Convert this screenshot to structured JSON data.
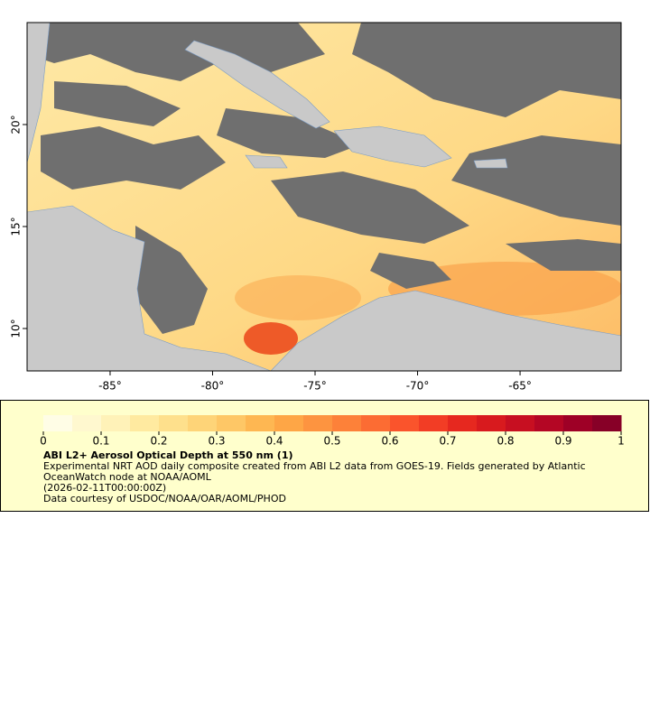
{
  "chart_data": {
    "type": "map",
    "xlim": [
      -89.05,
      -60.07
    ],
    "ylim": [
      7.92,
      25
    ],
    "xticks": [
      {
        "value": -85,
        "label": "-85°"
      },
      {
        "value": -80,
        "label": "-80°"
      },
      {
        "value": -75,
        "label": "-75°"
      },
      {
        "value": -70,
        "label": "-70°"
      },
      {
        "value": -65,
        "label": "-65°"
      }
    ],
    "yticks": [
      {
        "value": 10,
        "label": "10°"
      },
      {
        "value": 15,
        "label": "15°"
      },
      {
        "value": 20,
        "label": "20°"
      }
    ],
    "colorbar": {
      "title": "ABI L2+ Aerosol Optical Depth at 550 nm (1)",
      "lim": [
        0,
        1
      ],
      "ticks": [
        0,
        0.1,
        0.2,
        0.3,
        0.4,
        0.5,
        0.6,
        0.7,
        0.8,
        0.9,
        1
      ],
      "colors": [
        "#fffde6",
        "#fff8cf",
        "#fff2b8",
        "#ffeaa0",
        "#fee08c",
        "#fed478",
        "#fec766",
        "#feb752",
        "#fea646",
        "#fd9440",
        "#fd8139",
        "#fc6c33",
        "#fa542c",
        "#f23d25",
        "#e6281f",
        "#d81a1e",
        "#c70f21",
        "#b40624",
        "#9e0026",
        "#870027"
      ]
    },
    "notes": [
      "Experimental NRT AOD daily composite created from ABI L2 data from GOES-19. Fields generated by Atlantic OceanWatch node at NOAA/AOML",
      "(2026-02-11T00:00:00Z)",
      "Data courtesy of USDOC/NOAA/OAR/AOML/PHOD"
    ]
  }
}
